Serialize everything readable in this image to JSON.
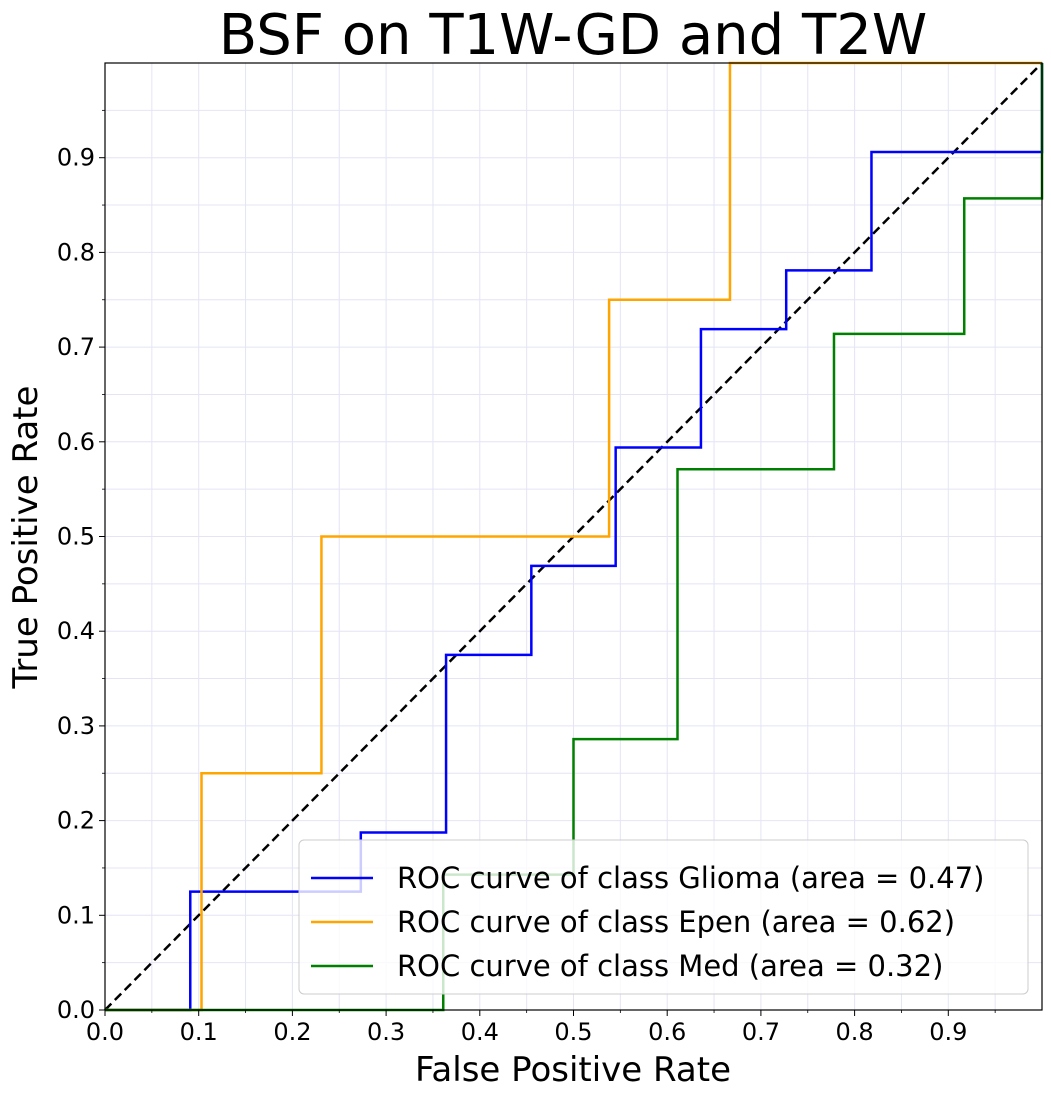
{
  "chart_data": {
    "type": "line",
    "title": "BSF on T1W-GD and T2W",
    "xlabel": "False Positive Rate",
    "ylabel": "True Positive Rate",
    "xlim": [
      0.0,
      1.0
    ],
    "ylim": [
      0.0,
      1.0
    ],
    "grid": true,
    "legend_position": "lower-right",
    "xticks": [
      "0.0",
      "0.1",
      "0.2",
      "0.3",
      "0.4",
      "0.5",
      "0.6",
      "0.7",
      "0.8",
      "0.9"
    ],
    "yticks": [
      "0.0",
      "0.1",
      "0.2",
      "0.3",
      "0.4",
      "0.5",
      "0.6",
      "0.7",
      "0.8",
      "0.9"
    ],
    "series": [
      {
        "name": "ROC curve of class Glioma (area = 0.47)",
        "color": "#0000ff",
        "x": [
          0.0,
          0.091,
          0.091,
          0.273,
          0.273,
          0.364,
          0.364,
          0.455,
          0.455,
          0.545,
          0.545,
          0.636,
          0.636,
          0.727,
          0.727,
          0.818,
          0.818,
          1.0,
          1.0
        ],
        "y": [
          0.0,
          0.0,
          0.125,
          0.125,
          0.1875,
          0.1875,
          0.375,
          0.375,
          0.469,
          0.469,
          0.594,
          0.594,
          0.719,
          0.719,
          0.781,
          0.781,
          0.906,
          0.906,
          1.0
        ]
      },
      {
        "name": "ROC curve of class Epen (area = 0.62)",
        "color": "#ffa500",
        "x": [
          0.0,
          0.103,
          0.103,
          0.231,
          0.231,
          0.538,
          0.538,
          0.667,
          0.667,
          1.0
        ],
        "y": [
          0.0,
          0.0,
          0.25,
          0.25,
          0.5,
          0.5,
          0.75,
          0.75,
          1.0,
          1.0
        ]
      },
      {
        "name": "ROC curve of class Med (area = 0.32)",
        "color": "#008000",
        "x": [
          0.0,
          0.361,
          0.361,
          0.5,
          0.5,
          0.611,
          0.611,
          0.778,
          0.778,
          0.917,
          0.917,
          1.0,
          1.0
        ],
        "y": [
          0.0,
          0.0,
          0.143,
          0.143,
          0.286,
          0.286,
          0.571,
          0.571,
          0.714,
          0.714,
          0.857,
          0.857,
          1.0
        ]
      }
    ],
    "reference_line": {
      "x": [
        0.0,
        1.0
      ],
      "y": [
        0.0,
        1.0
      ],
      "color": "#000000",
      "style": "dashed"
    }
  }
}
